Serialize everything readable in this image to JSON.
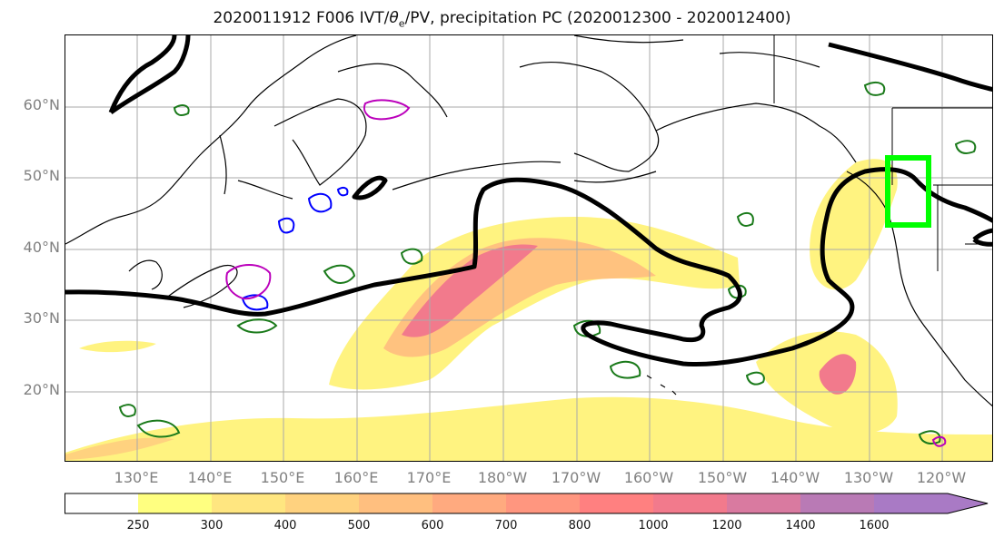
{
  "title": {
    "prefix": "2020011912 F006 IVT/",
    "theta": "θ",
    "theta_sub": "e",
    "suffix": "/PV, precipitation PC (2020012300 - 2020012400)"
  },
  "map": {
    "lat_labels": [
      "60°N",
      "50°N",
      "40°N",
      "30°N",
      "20°N"
    ],
    "lon_labels": [
      "130°E",
      "140°E",
      "150°E",
      "160°E",
      "170°E",
      "180°W",
      "170°W",
      "160°W",
      "150°W",
      "140°W",
      "130°W",
      "120°W"
    ],
    "colors": {
      "ivt_contour": "#000000",
      "pv_contour": "#1a7a1a",
      "cold_contour": "#0000ff",
      "warm_contour": "#bb00bb",
      "target_box": "#00ff00",
      "gridline": "#aaaaaa"
    }
  },
  "colorbar": {
    "ticks": [
      "250",
      "300",
      "400",
      "500",
      "600",
      "700",
      "800",
      "1000",
      "1200",
      "1400",
      "1600"
    ],
    "colors": [
      "#ffffff",
      "#ffff80",
      "#ffe680",
      "#ffd27f",
      "#ffbf7f",
      "#ffaa7f",
      "#ff967f",
      "#ff8080",
      "#f27a8c",
      "#d97aa0",
      "#b97ab5",
      "#a97ac5"
    ]
  }
}
